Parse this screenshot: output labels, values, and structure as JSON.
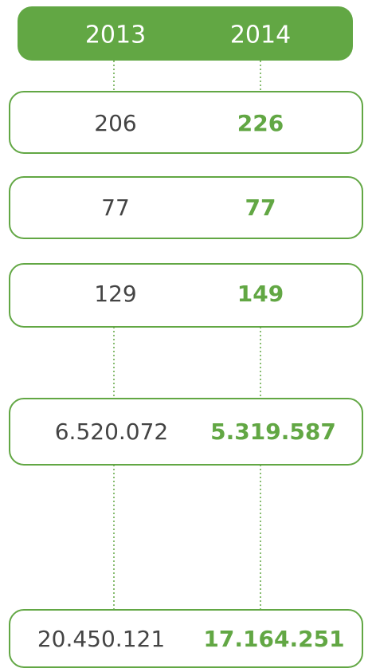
{
  "header": {
    "columns": [
      "2013",
      "2014"
    ]
  },
  "rows": [
    [
      "206",
      "226"
    ],
    [
      "77",
      "77"
    ],
    [
      "129",
      "149"
    ],
    [
      "6.520.072",
      "5.319.587"
    ],
    [
      "20.450.121",
      "17.164.251"
    ]
  ]
}
